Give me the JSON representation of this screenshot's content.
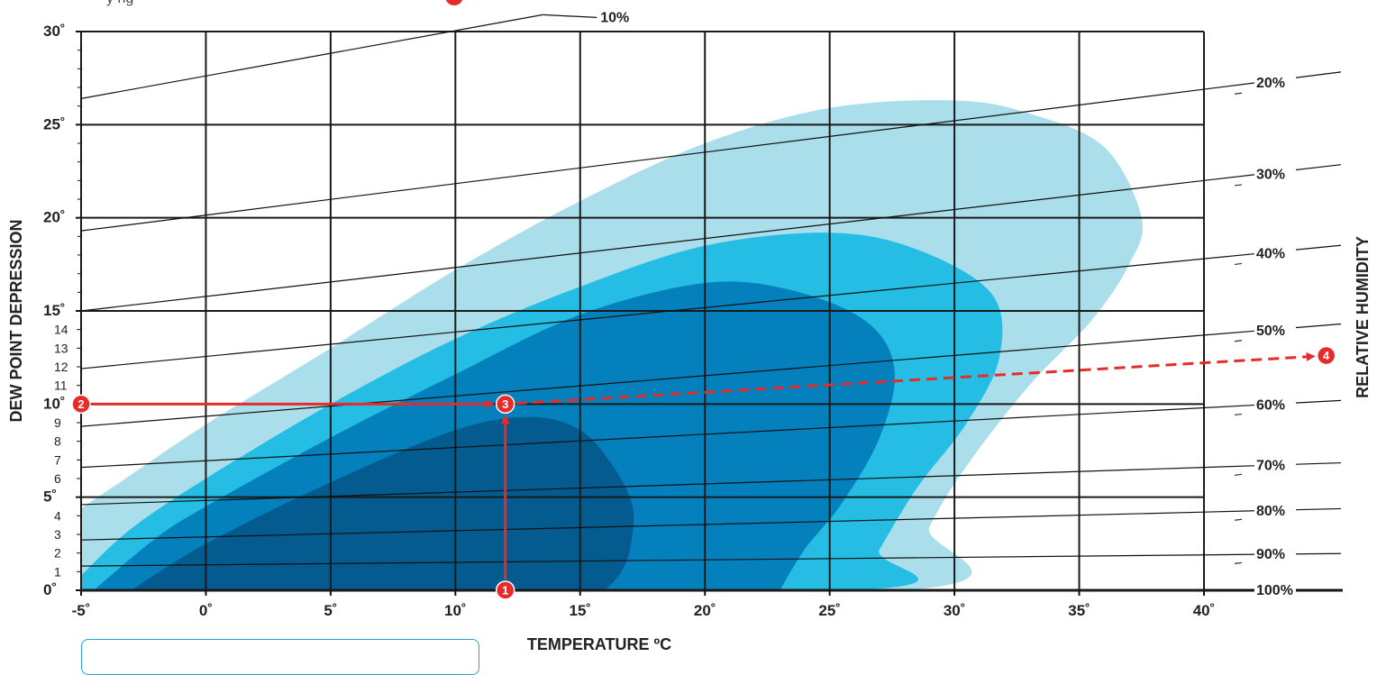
{
  "top_note": "y       ng",
  "chart_data": {
    "type": "line",
    "xlabel": "TEMPERATURE ºC",
    "ylabel": "DEW POINT DEPRESSION",
    "y2label": "RELATIVE HUMIDITY",
    "xlim": [
      -5,
      40
    ],
    "ylim": [
      0,
      30
    ],
    "x_ticks": [
      "-5˚",
      "0˚",
      "5˚",
      "10˚",
      "15˚",
      "20˚",
      "25˚",
      "30˚",
      "35˚",
      "40˚"
    ],
    "y_major_ticks": [
      "0˚",
      "5˚",
      "10˚",
      "15˚",
      "20˚",
      "25˚",
      "30˚"
    ],
    "y_minor_ticks": [
      "1",
      "2",
      "3",
      "4",
      "6",
      "7",
      "8",
      "9",
      "11",
      "12",
      "13",
      "14"
    ],
    "grid": true,
    "humidity_lines": [
      {
        "label": "10%",
        "start": [
          -5,
          26.4
        ],
        "end": [
          13.5,
          30.9
        ]
      },
      {
        "label": "20%",
        "start": [
          -5,
          19.3
        ],
        "end": [
          40,
          26.9
        ]
      },
      {
        "label": "30%",
        "start": [
          -5,
          15.0
        ],
        "end": [
          40,
          22.0
        ]
      },
      {
        "label": "40%",
        "start": [
          -5,
          11.9
        ],
        "end": [
          40,
          17.8
        ]
      },
      {
        "label": "50%",
        "start": [
          -5,
          8.8
        ],
        "end": [
          40,
          13.7
        ]
      },
      {
        "label": "60%",
        "start": [
          -5,
          6.6
        ],
        "end": [
          40,
          9.8
        ]
      },
      {
        "label": "70%",
        "start": [
          -5,
          4.6
        ],
        "end": [
          40,
          6.6
        ]
      },
      {
        "label": "80%",
        "start": [
          -5,
          2.7
        ],
        "end": [
          40,
          4.2
        ]
      },
      {
        "label": "90%",
        "start": [
          -5,
          1.3
        ],
        "end": [
          40,
          1.9
        ]
      },
      {
        "label": "100%",
        "start": [
          -5,
          0.0
        ],
        "end": [
          40,
          0.0
        ]
      }
    ],
    "regions": [
      {
        "level": 1,
        "color": "#aadeeb",
        "outline": [
          [
            -5,
            4.4
          ],
          [
            -3,
            6.2
          ],
          [
            0,
            8.9
          ],
          [
            5,
            13.0
          ],
          [
            10,
            17.2
          ],
          [
            15,
            20.9
          ],
          [
            20,
            24.0
          ],
          [
            25,
            25.9
          ],
          [
            30,
            26.3
          ],
          [
            33,
            25.6
          ],
          [
            36,
            23.8
          ],
          [
            37.5,
            20
          ],
          [
            37,
            17.5
          ],
          [
            35.5,
            14.5
          ],
          [
            33,
            11
          ],
          [
            30.5,
            6.7
          ],
          [
            29,
            3.4
          ],
          [
            28,
            0
          ],
          [
            -5,
            0
          ]
        ]
      },
      {
        "level": 2,
        "color": "#26bde5",
        "outline": [
          [
            -5,
            0.8
          ],
          [
            -3,
            3.3
          ],
          [
            0,
            6.0
          ],
          [
            5,
            10.0
          ],
          [
            10,
            13.5
          ],
          [
            15,
            16.3
          ],
          [
            20,
            18.5
          ],
          [
            25,
            19.2
          ],
          [
            28.5,
            18.3
          ],
          [
            31.5,
            15.9
          ],
          [
            31.8,
            12.5
          ],
          [
            30.5,
            9.0
          ],
          [
            28.5,
            5.5
          ],
          [
            27,
            2.2
          ],
          [
            26,
            0
          ],
          [
            -5,
            0
          ]
        ]
      },
      {
        "level": 3,
        "color": "#0480bd",
        "outline": [
          [
            -4.5,
            0
          ],
          [
            -2,
            2.8
          ],
          [
            0,
            4.5
          ],
          [
            5,
            8.2
          ],
          [
            10,
            11.6
          ],
          [
            15,
            14.8
          ],
          [
            20,
            16.5
          ],
          [
            23.5,
            16.1
          ],
          [
            26.5,
            14.4
          ],
          [
            27.6,
            11.8
          ],
          [
            27,
            8.2
          ],
          [
            25.5,
            4.7
          ],
          [
            24,
            2.2
          ],
          [
            23,
            0
          ]
        ]
      },
      {
        "level": 4,
        "color": "#045b90",
        "outline": [
          [
            -3,
            0
          ],
          [
            0,
            2.5
          ],
          [
            5,
            5.8
          ],
          [
            10,
            8.6
          ],
          [
            13,
            9.3
          ],
          [
            15,
            8.6
          ],
          [
            16.3,
            6.7
          ],
          [
            17.1,
            4.5
          ],
          [
            17,
            2.2
          ],
          [
            16.6,
            0.9
          ],
          [
            16,
            0
          ]
        ]
      }
    ],
    "annotations": [
      {
        "id": "1",
        "x": 12,
        "y": 0
      },
      {
        "id": "2",
        "x": -5,
        "y": 10
      },
      {
        "id": "3",
        "x": 12,
        "y": 10
      },
      {
        "id": "4",
        "x": 44.9,
        "y": 12.6
      }
    ],
    "arrows": [
      {
        "from": "1",
        "to": "3",
        "style": "solid"
      },
      {
        "from": "2",
        "to": "3",
        "style": "solid"
      },
      {
        "from": "3",
        "to": "4",
        "style": "dashed"
      }
    ],
    "colors": {
      "grid": "#1a1a1a",
      "arrow": "#e52b2b",
      "humidity_line": "#111111"
    }
  }
}
